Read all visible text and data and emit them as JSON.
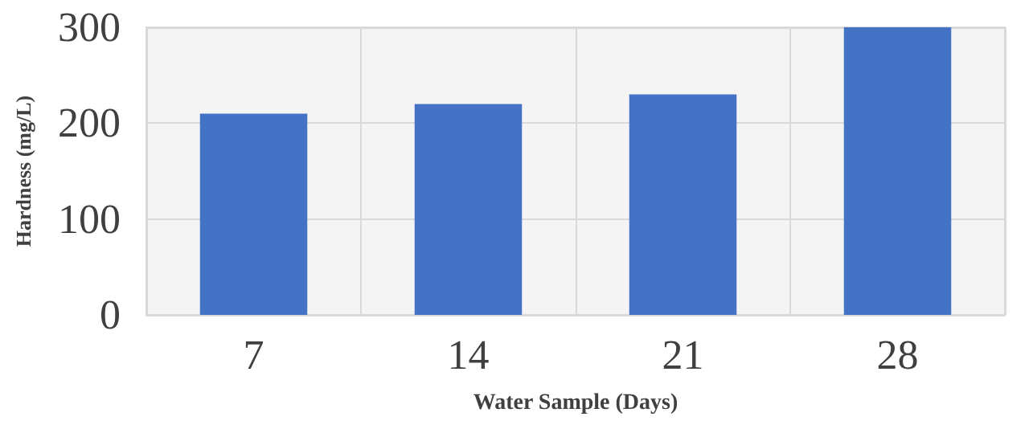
{
  "chart_data": {
    "type": "bar",
    "xlabel": "Water Sample (Days)",
    "ylabel": "Hardness (mg/L)",
    "categories": [
      "7",
      "14",
      "21",
      "28"
    ],
    "values": [
      210,
      220,
      230,
      300
    ],
    "color": "#4472c4",
    "ylim": [
      0,
      300
    ],
    "yticks": [
      0,
      100,
      200,
      300
    ],
    "grid": true
  }
}
